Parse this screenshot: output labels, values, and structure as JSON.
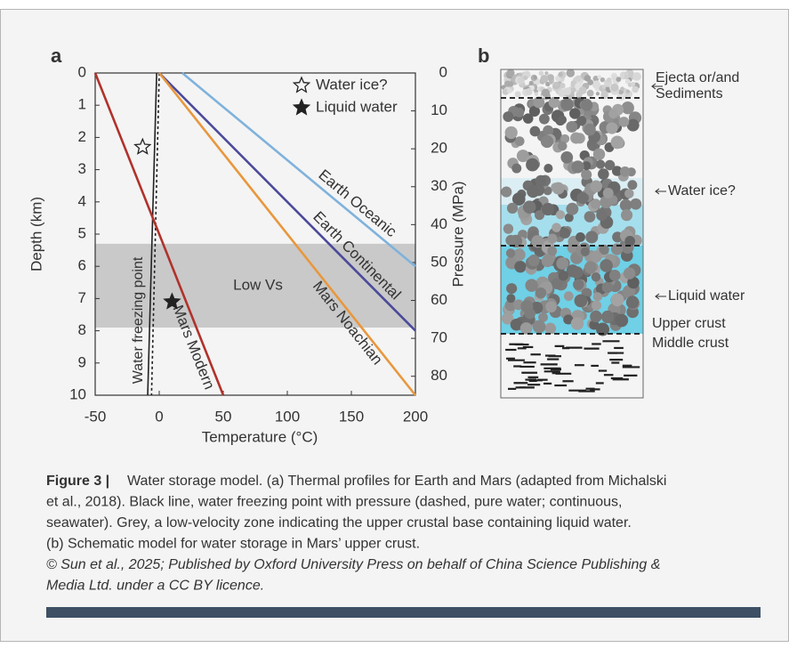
{
  "panel_labels": [
    "a",
    "b"
  ],
  "chart_data": {
    "type": "line",
    "xlabel": "Temperature (°C)",
    "ylabel": "Depth (km)",
    "y2label": "Pressure (MPa)",
    "xlim": [
      -50,
      200
    ],
    "xticks": [
      -50,
      0,
      50,
      100,
      150,
      200
    ],
    "ylim": [
      10,
      0
    ],
    "yticks": [
      0,
      1,
      2,
      3,
      4,
      5,
      6,
      7,
      8,
      9,
      10
    ],
    "y2lim": [
      85,
      0
    ],
    "y2ticks": [
      0,
      10,
      20,
      30,
      40,
      50,
      60,
      70,
      80
    ],
    "series": [
      {
        "name": "Earth Oceanic",
        "color": "#7fb2dc",
        "x": [
          18,
          200
        ],
        "values": [
          0,
          6
        ]
      },
      {
        "name": "Earth Continental",
        "color": "#4b4a9a",
        "x": [
          0,
          200
        ],
        "values": [
          0,
          8
        ]
      },
      {
        "name": "Mars Noachian",
        "color": "#e8973d",
        "x": [
          0,
          200
        ],
        "values": [
          0,
          10
        ]
      },
      {
        "name": "Mars Modern",
        "color": "#b0322b",
        "x": [
          -50,
          50
        ],
        "values": [
          0,
          10
        ]
      }
    ],
    "freezing_point": {
      "label": "Water freezing point",
      "color": "#222222",
      "lines": [
        {
          "dashed": true,
          "x": [
            0,
            -6
          ],
          "values": [
            0,
            10
          ]
        },
        {
          "dashed": false,
          "x": [
            -2,
            -9
          ],
          "values": [
            0,
            10
          ]
        }
      ]
    },
    "bands": [
      {
        "label": "Low Vs",
        "from": 5.3,
        "to": 7.9,
        "color": "#c9c9c9"
      }
    ],
    "points": [
      {
        "name": "Water ice?",
        "x": -13,
        "y": 2.3,
        "filled": false
      },
      {
        "name": "Liquid water",
        "x": 10,
        "y": 7.1,
        "filled": true
      }
    ]
  },
  "panel_b": {
    "labels": [
      "Ejecta or/and",
      "Sediments",
      "Water ice?",
      "Liquid water",
      "Upper crust",
      "Middle crust"
    ]
  },
  "caption": {
    "label": "Figure 3 |",
    "lines": [
      "Water storage model. (a) Thermal profiles for Earth and Mars (adapted from Michalski",
      "et al., 2018). Black line, water freezing point with pressure (dashed, pure water; continuous,",
      "seawater). Grey, a low-velocity zone indicating the upper crustal base containing liquid water.",
      "(b) Schematic model for water storage in Mars’ upper crust."
    ],
    "credit": [
      "© Sun et al., 2025; Published by Oxford University Press on behalf of China Science Publishing &",
      "Media Ltd. under a CC BY licence."
    ]
  }
}
